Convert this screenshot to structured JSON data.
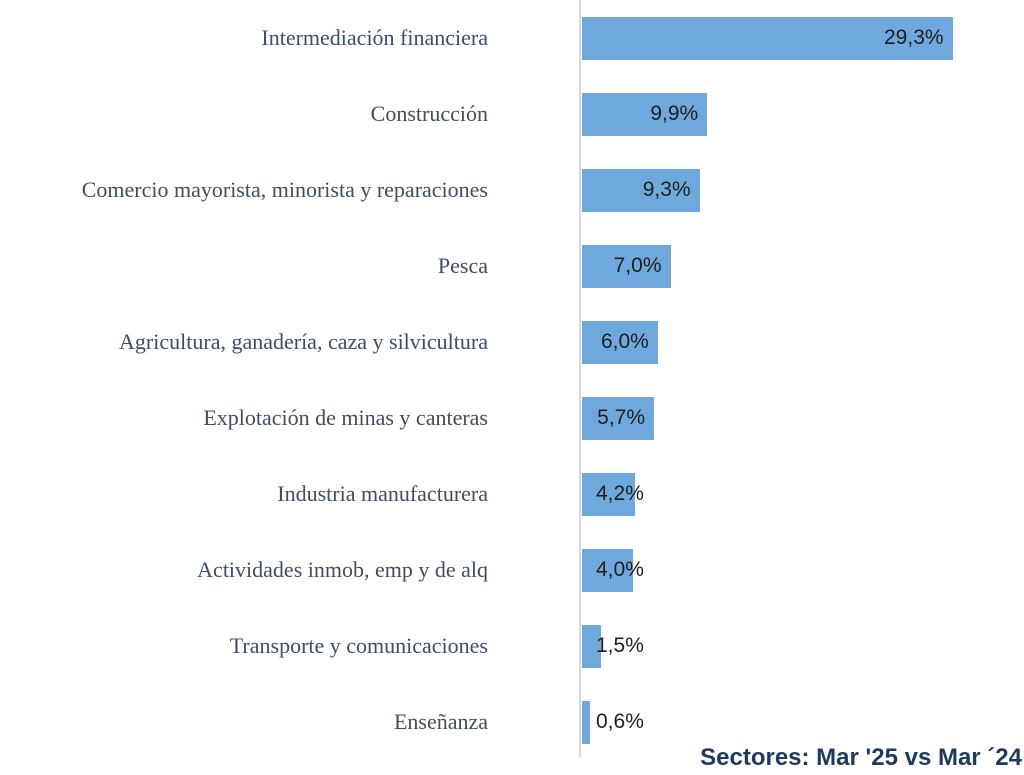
{
  "chart_data": {
    "type": "bar",
    "orientation": "horizontal",
    "title": "",
    "footer": "Sectores: Mar '25 vs Mar ´24",
    "categories": [
      "Intermediación financiera",
      "Construcción",
      "Comercio mayorista, minorista y reparaciones",
      "Pesca",
      "Agricultura, ganadería, caza y silvicultura",
      "Explotación de minas y canteras",
      "Industria manufacturera",
      "Actividades inmob, emp y de alq",
      "Transporte y comunicaciones",
      "Enseñanza"
    ],
    "values": [
      29.3,
      9.9,
      9.3,
      7.0,
      6.0,
      5.7,
      4.2,
      4.0,
      1.5,
      0.6
    ],
    "value_labels": [
      "29,3%",
      "9,9%",
      "9,3%",
      "7,0%",
      "6,0%",
      "5,7%",
      "4,2%",
      "4,0%",
      "1,5%",
      "0,6%"
    ],
    "x_axis": {
      "min": 0,
      "max": 35,
      "gridlines": false,
      "tick_labels_visible": false
    },
    "legend": null
  },
  "colors": {
    "bar_fill": "#6FA8DC",
    "category_text": "#3E4E63",
    "value_text": "#1E1E1E",
    "footer_text": "#1F3A5C",
    "axis_line": "#D9D9D9",
    "background": "#FFFFFF"
  }
}
